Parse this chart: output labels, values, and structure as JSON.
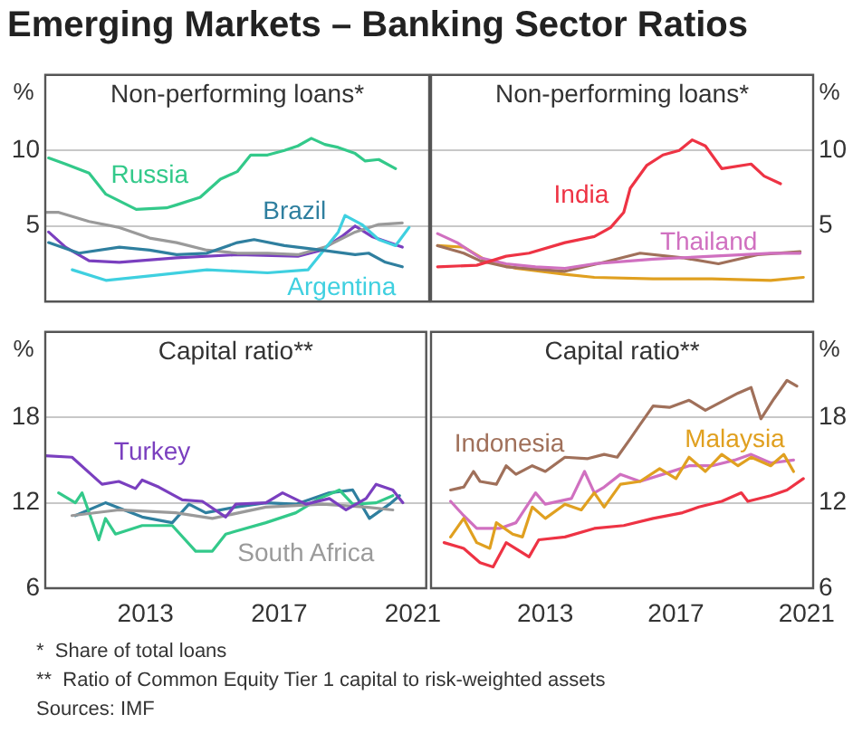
{
  "chart_data": [
    {
      "type": "other",
      "title": "Emerging Markets – Banking Sector Ratios",
      "annotations": [
        "*  Share of total loans",
        "**  Ratio of Common Equity Tier 1 capital to risk-weighted assets",
        "Sources: IMF"
      ]
    },
    {
      "type": "line",
      "title": "Non-performing loans*",
      "ylabel": "%",
      "xlim": [
        2010.5,
        2021.9
      ],
      "ylim": [
        0,
        15
      ],
      "yticks": [
        5,
        10
      ],
      "grid": "y",
      "tick_labels": "y",
      "series": [
        {
          "name": "Russia",
          "color": "#33c98a",
          "x": [
            2010.6,
            2011.1,
            2011.8,
            2012.3,
            2013.2,
            2014.1,
            2014.4,
            2015.1,
            2015.7,
            2016.2,
            2016.6,
            2017.1,
            2017.6,
            2018.0,
            2018.4,
            2018.8,
            2019.2,
            2019.7,
            2020.0,
            2020.4,
            2020.9
          ],
          "values": [
            9.5,
            9.1,
            8.5,
            7.1,
            6.1,
            6.2,
            6.4,
            6.9,
            8.1,
            8.6,
            9.7,
            9.7,
            10.0,
            10.3,
            10.8,
            10.4,
            10.2,
            9.8,
            9.3,
            9.4,
            8.8
          ]
        },
        {
          "name": "Brazil",
          "color": "#2f7f9f",
          "x": [
            2010.6,
            2011.5,
            2012.7,
            2013.6,
            2014.4,
            2015.3,
            2016.2,
            2016.7,
            2017.6,
            2018.7,
            2019.7,
            2020.1,
            2020.6,
            2021.1
          ],
          "values": [
            3.9,
            3.2,
            3.6,
            3.4,
            3.1,
            3.2,
            3.9,
            4.1,
            3.7,
            3.4,
            3.1,
            3.2,
            2.6,
            2.3
          ]
        },
        {
          "name": "Argentina",
          "color": "#3fd0e0",
          "x": [
            2011.3,
            2012.3,
            2013.6,
            2015.3,
            2017.1,
            2018.3,
            2018.7,
            2019.2,
            2019.4,
            2019.9,
            2020.4,
            2020.9,
            2021.3
          ],
          "values": [
            2.1,
            1.4,
            1.7,
            2.1,
            1.9,
            2.1,
            3.2,
            4.6,
            5.7,
            5.1,
            4.1,
            3.7,
            4.9
          ]
        },
        {
          "color": "#9a9a9a",
          "x": [
            2010.5,
            2010.9,
            2011.8,
            2012.7,
            2013.6,
            2014.4,
            2015.3,
            2016.2,
            2017.1,
            2018.0,
            2018.8,
            2019.7,
            2020.4,
            2021.1
          ],
          "values": [
            5.9,
            5.9,
            5.3,
            4.9,
            4.2,
            3.9,
            3.4,
            3.2,
            3.2,
            3.1,
            3.6,
            4.6,
            5.1,
            5.2
          ]
        },
        {
          "color": "#7a3fbf",
          "x": [
            2010.6,
            2011.1,
            2011.8,
            2012.7,
            2014.4,
            2016.2,
            2018.0,
            2018.7,
            2019.3,
            2019.7,
            2020.2,
            2021.1
          ],
          "values": [
            4.6,
            3.6,
            2.7,
            2.6,
            2.9,
            3.1,
            3.0,
            3.4,
            4.3,
            5.0,
            4.3,
            3.6
          ]
        }
      ]
    },
    {
      "type": "line",
      "title": "Non-performing loans*",
      "ylabel": "%",
      "xlim": [
        2010.0,
        2021.7
      ],
      "ylim": [
        0,
        15
      ],
      "yticks": [
        5,
        10
      ],
      "grid": "y",
      "tick_labels": "y",
      "series": [
        {
          "name": "India",
          "color": "#ee3344",
          "x": [
            2010.2,
            2011.4,
            2012.3,
            2013.0,
            2014.1,
            2015.0,
            2015.5,
            2015.9,
            2016.1,
            2016.6,
            2017.1,
            2017.6,
            2018.0,
            2018.4,
            2018.9,
            2019.8,
            2020.2,
            2020.7
          ],
          "values": [
            2.3,
            2.4,
            3.0,
            3.2,
            3.9,
            4.3,
            4.9,
            5.9,
            7.5,
            9.0,
            9.7,
            10.0,
            10.7,
            10.3,
            8.8,
            9.1,
            8.3,
            7.8
          ]
        },
        {
          "name": "Thailand",
          "color": "#d070c0",
          "x": [
            2010.2,
            2010.8,
            2011.5,
            2012.3,
            2013.2,
            2014.1,
            2015.0,
            2016.8,
            2018.6,
            2020.4,
            2021.3
          ],
          "values": [
            4.5,
            3.9,
            2.9,
            2.5,
            2.3,
            2.2,
            2.5,
            2.8,
            3.0,
            3.2,
            3.2
          ]
        },
        {
          "color": "#a0705a",
          "x": [
            2010.2,
            2011.0,
            2011.5,
            2012.3,
            2014.1,
            2015.3,
            2016.4,
            2017.7,
            2018.8,
            2020.0,
            2021.3
          ],
          "values": [
            3.7,
            3.2,
            2.7,
            2.3,
            2.0,
            2.6,
            3.2,
            2.9,
            2.5,
            3.1,
            3.3
          ]
        },
        {
          "color": "#e0a020",
          "x": [
            2010.2,
            2011.0,
            2011.7,
            2012.6,
            2014.1,
            2015.0,
            2016.8,
            2018.6,
            2020.4,
            2021.4
          ],
          "values": [
            3.7,
            3.6,
            2.7,
            2.2,
            1.8,
            1.6,
            1.5,
            1.5,
            1.4,
            1.6
          ]
        }
      ]
    },
    {
      "type": "line",
      "title": "Capital ratio**",
      "ylabel": "%",
      "xlim": [
        2010.5,
        2021.9
      ],
      "ylim": [
        6,
        24
      ],
      "yticks": [
        6,
        12,
        18
      ],
      "xticks": [
        {
          "value": 2013.5,
          "label": "2013"
        },
        {
          "value": 2017.5,
          "label": "2017"
        },
        {
          "value": 2021.5,
          "label": "2021"
        }
      ],
      "grid": "y",
      "series": [
        {
          "name": "Turkey",
          "color": "#7a3fbf",
          "x": [
            2010.5,
            2011.3,
            2012.2,
            2012.7,
            2013.2,
            2013.4,
            2013.9,
            2014.6,
            2015.2,
            2015.9,
            2016.2,
            2017.1,
            2017.6,
            2018.3,
            2019.0,
            2019.5,
            2020.1,
            2020.4,
            2020.9,
            2021.2
          ],
          "values": [
            15.3,
            15.2,
            13.3,
            13.5,
            13.0,
            13.6,
            13.1,
            12.2,
            12.1,
            11.0,
            11.9,
            12.0,
            12.7,
            11.9,
            12.3,
            11.5,
            12.3,
            13.3,
            12.9,
            12.0
          ]
        },
        {
          "name": "South Africa",
          "color": "#9a9a9a",
          "x": [
            2011.3,
            2012.7,
            2014.4,
            2015.5,
            2017.1,
            2018.8,
            2020.1,
            2020.9
          ],
          "values": [
            11.1,
            11.5,
            11.3,
            10.9,
            11.7,
            11.9,
            11.7,
            11.5
          ]
        },
        {
          "color": "#33c98a",
          "x": [
            2010.9,
            2011.4,
            2011.6,
            2012.1,
            2012.3,
            2012.6,
            2013.4,
            2014.3,
            2015.0,
            2015.5,
            2015.9,
            2016.2,
            2017.1,
            2018.0,
            2018.7,
            2019.3,
            2019.7,
            2020.4,
            2020.9
          ],
          "values": [
            12.7,
            12.0,
            12.7,
            9.4,
            10.9,
            9.8,
            10.4,
            10.4,
            8.6,
            8.6,
            9.8,
            10.0,
            10.6,
            11.3,
            12.3,
            12.9,
            11.9,
            12.0,
            12.5
          ]
        },
        {
          "color": "#2f7f9f",
          "x": [
            2011.4,
            2012.3,
            2013.4,
            2014.3,
            2014.8,
            2015.3,
            2016.2,
            2017.1,
            2018.0,
            2019.0,
            2019.7,
            2020.2,
            2020.8,
            2021.1
          ],
          "values": [
            11.1,
            12.0,
            11.0,
            10.6,
            11.9,
            11.3,
            11.7,
            12.0,
            11.9,
            12.7,
            12.9,
            10.9,
            11.9,
            12.5
          ]
        }
      ]
    },
    {
      "type": "line",
      "title": "Capital ratio**",
      "ylabel": "%",
      "xlim": [
        2010.0,
        2021.7
      ],
      "ylim": [
        6,
        24
      ],
      "yticks": [
        6,
        12,
        18
      ],
      "xticks": [
        {
          "value": 2013.5,
          "label": "2013"
        },
        {
          "value": 2017.5,
          "label": "2017"
        },
        {
          "value": 2021.5,
          "label": "2021"
        }
      ],
      "grid": "y",
      "series": [
        {
          "name": "Indonesia",
          "color": "#a0705a",
          "x": [
            2010.6,
            2011.0,
            2011.3,
            2011.5,
            2012.0,
            2012.3,
            2012.6,
            2013.1,
            2013.5,
            2014.1,
            2014.8,
            2015.3,
            2015.7,
            2016.1,
            2016.4,
            2016.8,
            2017.3,
            2017.9,
            2018.4,
            2018.9,
            2019.4,
            2019.8,
            2020.1,
            2020.5,
            2020.9,
            2021.2
          ],
          "values": [
            12.9,
            13.1,
            14.2,
            13.5,
            13.3,
            14.6,
            14.0,
            14.6,
            14.2,
            15.2,
            15.1,
            15.4,
            15.2,
            16.5,
            17.5,
            18.8,
            18.7,
            19.2,
            18.5,
            19.1,
            19.7,
            20.1,
            17.9,
            19.3,
            20.6,
            20.2
          ]
        },
        {
          "name": "Malaysia",
          "color": "#e0a020",
          "x": [
            2010.6,
            2011.0,
            2011.4,
            2011.8,
            2012.0,
            2012.5,
            2012.8,
            2013.1,
            2013.5,
            2014.1,
            2014.6,
            2015.0,
            2015.3,
            2015.8,
            2016.4,
            2017.0,
            2017.5,
            2017.9,
            2018.4,
            2018.9,
            2019.4,
            2019.8,
            2020.4,
            2020.8,
            2021.1
          ],
          "values": [
            9.6,
            10.9,
            9.2,
            8.8,
            10.6,
            9.8,
            9.6,
            11.7,
            10.9,
            11.9,
            11.5,
            12.7,
            11.7,
            13.3,
            13.5,
            14.4,
            13.7,
            15.2,
            14.2,
            15.4,
            14.6,
            15.2,
            14.6,
            15.4,
            14.2
          ]
        },
        {
          "color": "#d070c0",
          "x": [
            2010.6,
            2011.0,
            2011.4,
            2012.1,
            2012.6,
            2013.2,
            2013.5,
            2014.3,
            2014.7,
            2015.0,
            2015.3,
            2015.8,
            2016.4,
            2017.1,
            2017.9,
            2018.6,
            2019.3,
            2019.8,
            2020.4,
            2021.1
          ],
          "values": [
            12.1,
            11.1,
            10.2,
            10.2,
            10.6,
            12.7,
            11.9,
            12.3,
            14.2,
            12.7,
            13.1,
            14.0,
            13.5,
            14.0,
            14.6,
            14.6,
            15.0,
            15.4,
            14.8,
            15.0
          ]
        },
        {
          "color": "#ee3344",
          "x": [
            2010.4,
            2011.0,
            2011.5,
            2011.9,
            2012.3,
            2013.0,
            2013.3,
            2014.1,
            2015.0,
            2015.9,
            2016.8,
            2017.7,
            2018.2,
            2018.9,
            2019.5,
            2019.7,
            2020.4,
            2020.9,
            2021.4
          ],
          "values": [
            9.2,
            8.8,
            7.8,
            7.5,
            9.2,
            8.2,
            9.4,
            9.6,
            10.2,
            10.4,
            10.9,
            11.3,
            11.7,
            12.1,
            12.7,
            12.1,
            12.5,
            12.9,
            13.7
          ]
        }
      ]
    }
  ]
}
